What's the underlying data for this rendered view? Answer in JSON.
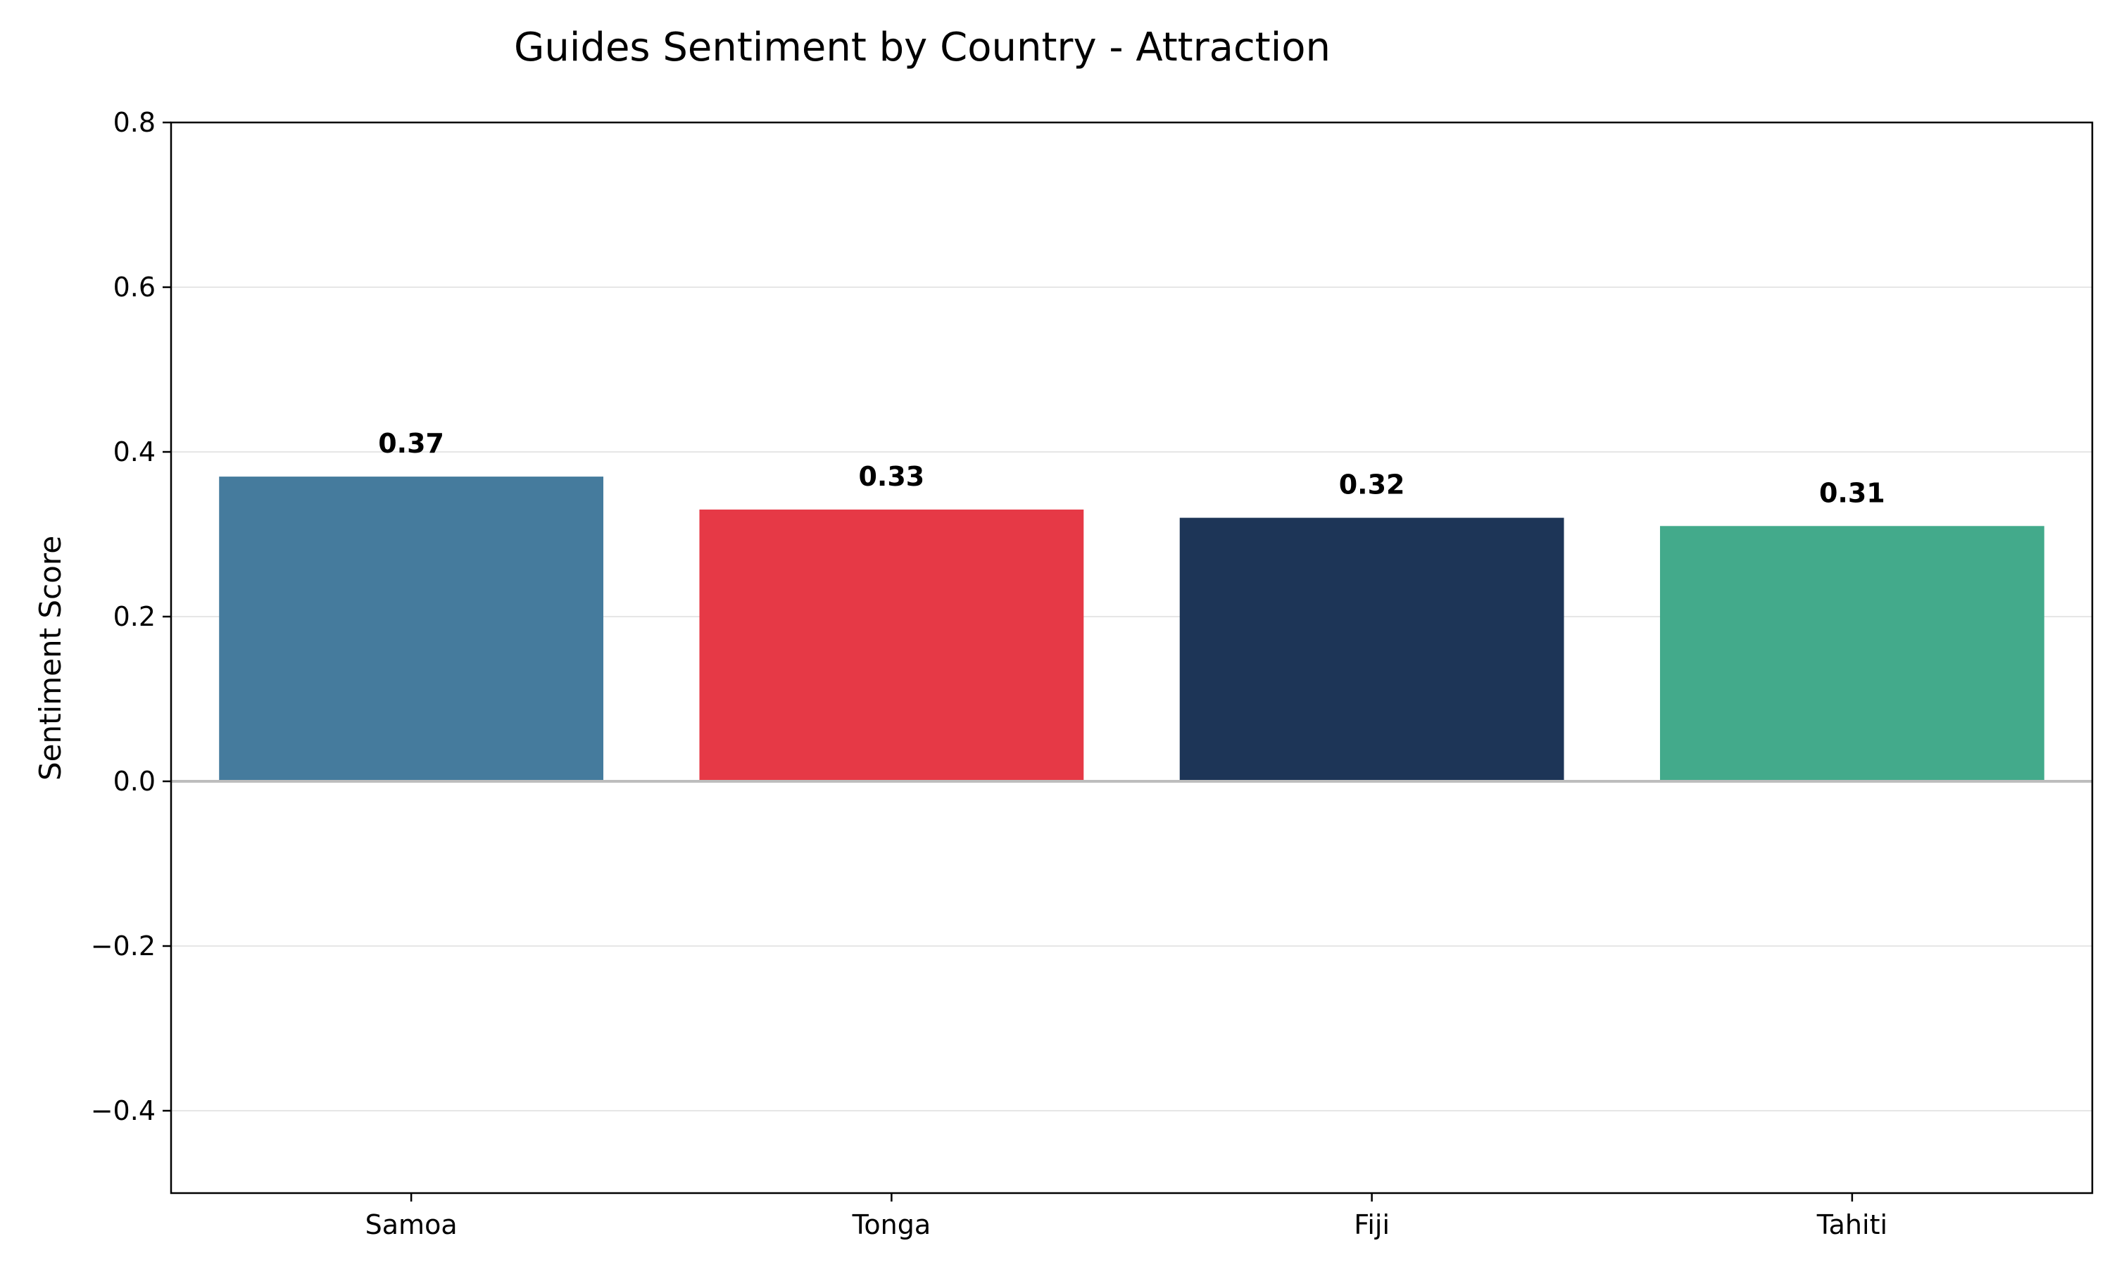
{
  "chart_data": {
    "type": "bar",
    "title": "Guides Sentiment by Country - Attraction",
    "xlabel": "",
    "ylabel": "Sentiment Score",
    "categories": [
      "Samoa",
      "Tonga",
      "Fiji",
      "Tahiti"
    ],
    "values": [
      0.37,
      0.33,
      0.32,
      0.31
    ],
    "value_labels": [
      "0.37",
      "0.33",
      "0.32",
      "0.31"
    ],
    "colors": [
      "#457b9d",
      "#e63946",
      "#1d3557",
      "#43aa8b"
    ],
    "ylim": [
      -0.5,
      0.8
    ],
    "yticks": [
      -0.4,
      -0.2,
      0.0,
      0.2,
      0.4,
      0.6,
      0.8
    ],
    "ytick_labels": [
      "−0.4",
      "−0.2",
      "0.0",
      "0.2",
      "0.4",
      "0.6",
      "0.8"
    ],
    "grid": "horizontal",
    "zero_line": true,
    "legend": "none"
  }
}
